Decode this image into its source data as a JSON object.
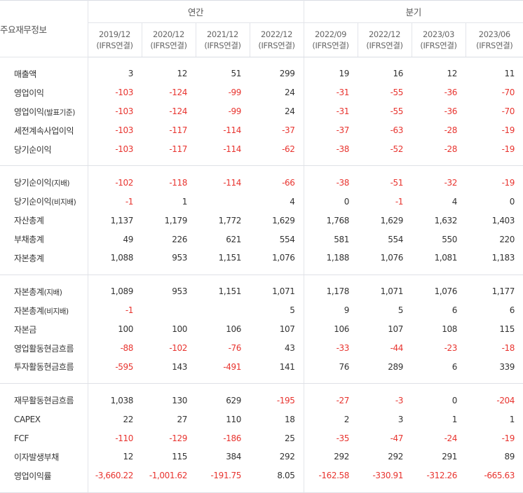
{
  "header": {
    "corner_label": "주요재무정보",
    "annual_label": "연간",
    "quarter_label": "분기",
    "periods": [
      {
        "date": "2019/12",
        "basis": "(IFRS연결)"
      },
      {
        "date": "2020/12",
        "basis": "(IFRS연결)"
      },
      {
        "date": "2021/12",
        "basis": "(IFRS연결)"
      },
      {
        "date": "2022/12",
        "basis": "(IFRS연결)"
      },
      {
        "date": "2022/09",
        "basis": "(IFRS연결)"
      },
      {
        "date": "2022/12",
        "basis": "(IFRS연결)"
      },
      {
        "date": "2023/03",
        "basis": "(IFRS연결)"
      },
      {
        "date": "2023/06",
        "basis": "(IFRS연결)"
      }
    ]
  },
  "groups": [
    [
      {
        "label": "매출액",
        "values": [
          "3",
          "12",
          "51",
          "299",
          "19",
          "16",
          "12",
          "11"
        ]
      },
      {
        "label": "영업이익",
        "values": [
          "-103",
          "-124",
          "-99",
          "24",
          "-31",
          "-55",
          "-36",
          "-70"
        ]
      },
      {
        "label": "영업이익",
        "suffix": "(발표기준)",
        "values": [
          "-103",
          "-124",
          "-99",
          "24",
          "-31",
          "-55",
          "-36",
          "-70"
        ]
      },
      {
        "label": "세전계속사업이익",
        "values": [
          "-103",
          "-117",
          "-114",
          "-37",
          "-37",
          "-63",
          "-28",
          "-19"
        ]
      },
      {
        "label": "당기순이익",
        "values": [
          "-103",
          "-117",
          "-114",
          "-62",
          "-38",
          "-52",
          "-28",
          "-19"
        ]
      }
    ],
    [
      {
        "label": "당기순이익",
        "suffix": "(지배)",
        "values": [
          "-102",
          "-118",
          "-114",
          "-66",
          "-38",
          "-51",
          "-32",
          "-19"
        ]
      },
      {
        "label": "당기순이익",
        "suffix": "(비지배)",
        "values": [
          "-1",
          "1",
          "",
          "4",
          "0",
          "-1",
          "4",
          "0"
        ]
      },
      {
        "label": "자산총계",
        "values": [
          "1,137",
          "1,179",
          "1,772",
          "1,629",
          "1,768",
          "1,629",
          "1,632",
          "1,403"
        ]
      },
      {
        "label": "부채총계",
        "values": [
          "49",
          "226",
          "621",
          "554",
          "581",
          "554",
          "550",
          "220"
        ]
      },
      {
        "label": "자본총계",
        "values": [
          "1,088",
          "953",
          "1,151",
          "1,076",
          "1,188",
          "1,076",
          "1,081",
          "1,183"
        ]
      }
    ],
    [
      {
        "label": "자본총계",
        "suffix": "(지배)",
        "values": [
          "1,089",
          "953",
          "1,151",
          "1,071",
          "1,178",
          "1,071",
          "1,076",
          "1,177"
        ]
      },
      {
        "label": "자본총계",
        "suffix": "(비지배)",
        "values": [
          "-1",
          "",
          "",
          "5",
          "9",
          "5",
          "6",
          "6"
        ]
      },
      {
        "label": "자본금",
        "values": [
          "100",
          "100",
          "106",
          "107",
          "106",
          "107",
          "108",
          "115"
        ]
      },
      {
        "label": "영업활동현금흐름",
        "values": [
          "-88",
          "-102",
          "-76",
          "43",
          "-33",
          "-44",
          "-23",
          "-18"
        ]
      },
      {
        "label": "투자활동현금흐름",
        "values": [
          "-595",
          "143",
          "-491",
          "141",
          "76",
          "289",
          "6",
          "339"
        ]
      }
    ],
    [
      {
        "label": "재무활동현금흐름",
        "values": [
          "1,038",
          "130",
          "629",
          "-195",
          "-27",
          "-3",
          "0",
          "-204"
        ]
      },
      {
        "label": "CAPEX",
        "values": [
          "22",
          "27",
          "110",
          "18",
          "2",
          "3",
          "1",
          "1"
        ]
      },
      {
        "label": "FCF",
        "values": [
          "-110",
          "-129",
          "-186",
          "25",
          "-35",
          "-47",
          "-24",
          "-19"
        ]
      },
      {
        "label": "이자발생부채",
        "values": [
          "12",
          "115",
          "384",
          "292",
          "292",
          "292",
          "291",
          "89"
        ]
      },
      {
        "label": "영업이익률",
        "values": [
          "-3,660.22",
          "-1,001.62",
          "-191.75",
          "8.05",
          "-162.58",
          "-330.91",
          "-312.26",
          "-665.63"
        ]
      }
    ]
  ]
}
